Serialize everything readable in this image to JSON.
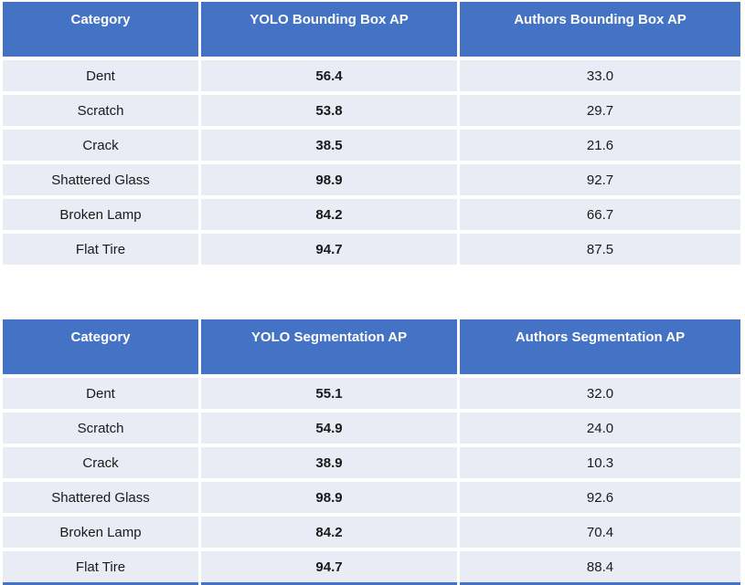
{
  "colors": {
    "header_bg": "#4472C4",
    "header_text": "#FFFFFF",
    "row_bg": "#E9EBF5",
    "body_text": "#1A1A1A",
    "divider": "#FFFFFF",
    "page_bg": "#FFFFFF"
  },
  "chart_data": [
    {
      "type": "table",
      "columns": [
        "Category",
        "YOLO Bounding Box AP",
        "Authors Bounding Box AP"
      ],
      "rows": [
        [
          "Dent",
          "56.4",
          "33.0"
        ],
        [
          "Scratch",
          "53.8",
          "29.7"
        ],
        [
          "Crack",
          "38.5",
          "21.6"
        ],
        [
          "Shattered Glass",
          "98.9",
          "92.7"
        ],
        [
          "Broken Lamp",
          "84.2",
          "66.7"
        ],
        [
          "Flat Tire",
          "94.7",
          "87.5"
        ]
      ]
    },
    {
      "type": "table",
      "columns": [
        "Category",
        "YOLO Segmentation AP",
        "Authors Segmentation AP"
      ],
      "rows": [
        [
          "Dent",
          "55.1",
          "32.0"
        ],
        [
          "Scratch",
          "54.9",
          "24.0"
        ],
        [
          "Crack",
          "38.9",
          "10.3"
        ],
        [
          "Shattered Glass",
          "98.9",
          "92.6"
        ],
        [
          "Broken Lamp",
          "84.2",
          "70.4"
        ],
        [
          "Flat Tire",
          "94.7",
          "88.4"
        ]
      ]
    }
  ]
}
